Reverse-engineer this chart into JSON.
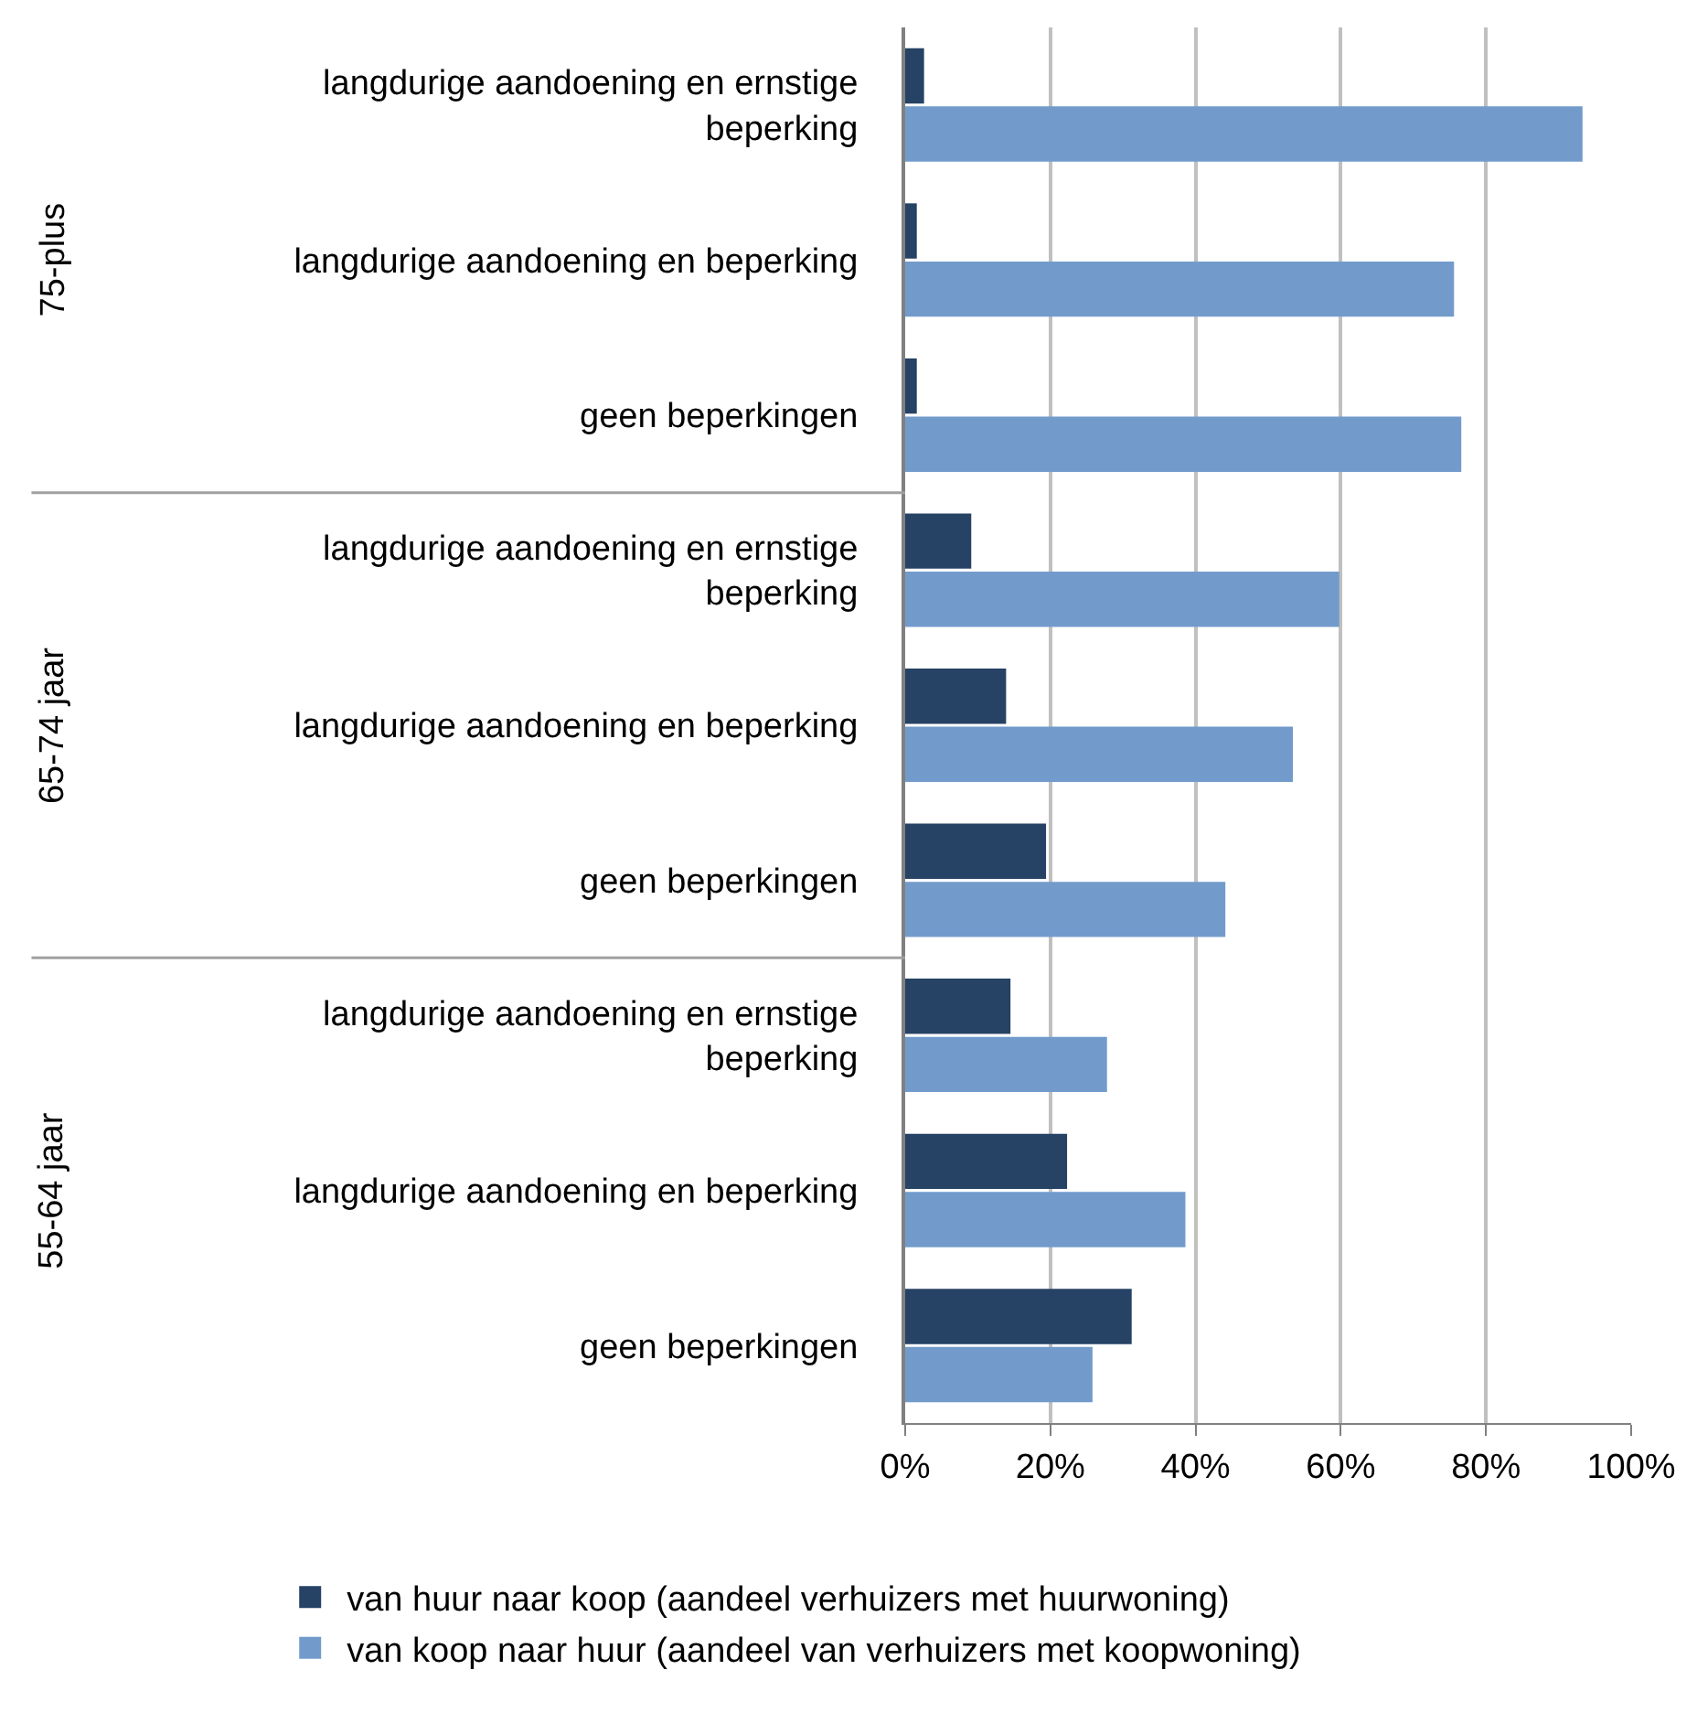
{
  "chart_data": {
    "type": "bar",
    "orientation": "horizontal",
    "categories": [
      "langdurige aandoening en ernstige beperking",
      "langdurige aandoening en beperking",
      "geen beperkingen",
      "langdurige aandoening en ernstige beperking",
      "langdurige aandoening en beperking",
      "geen beperkingen",
      "langdurige aandoening en ernstige beperking",
      "langdurige aandoening en beperking",
      "geen beperkingen"
    ],
    "series": [
      {
        "name": "van huur naar koop (aandeel verhuizers met huurwoning)",
        "color": "#264264",
        "values": [
          2.6,
          1.6,
          1.6,
          9.1,
          13.9,
          19.4,
          14.5,
          22.3,
          31.2
        ]
      },
      {
        "name": "van koop naar huur (aandeel van verhuizers met koopwoning)",
        "color": "#729bcc",
        "values": [
          93.3,
          75.6,
          76.6,
          59.8,
          53.4,
          44.1,
          27.8,
          38.6,
          25.8
        ]
      }
    ],
    "annotations": [
      "75-plus",
      "65-74 jaar",
      "55-64 jaar"
    ],
    "xlim": [
      0,
      100
    ],
    "xticks": [
      {
        "value": 0,
        "label": "0%"
      },
      {
        "value": 20,
        "label": "20%"
      },
      {
        "value": 40,
        "label": "40%"
      },
      {
        "value": 60,
        "label": "60%"
      },
      {
        "value": 80,
        "label": "80%"
      },
      {
        "value": 100,
        "label": "100%"
      }
    ],
    "grid": "x",
    "legend": "bottom"
  }
}
